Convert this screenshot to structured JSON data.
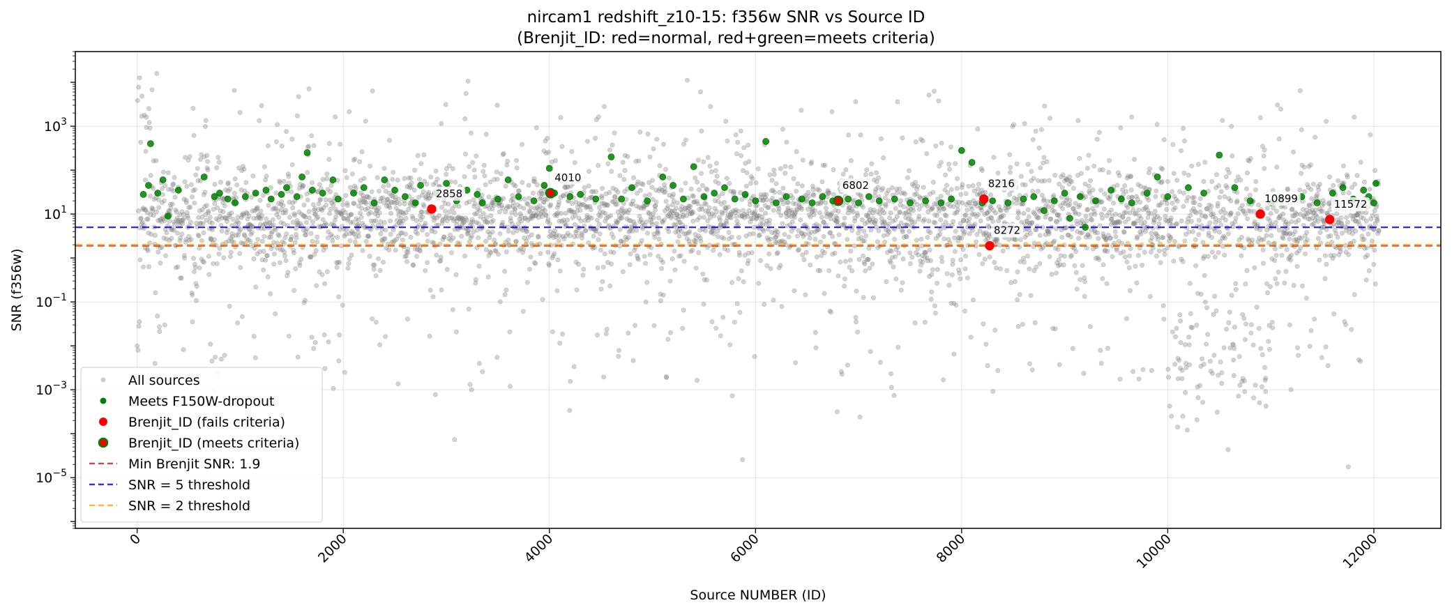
{
  "chart_data": {
    "type": "scatter",
    "title": "nircam1 redshift_z10-15: f356w SNR vs Source ID",
    "subtitle": "(Brenjit_ID: red=normal, red+green=meets criteria)",
    "xlabel": "Source NUMBER (ID)",
    "ylabel": "SNR (f356w)",
    "xlim": [
      -600,
      12650
    ],
    "ylim": [
      7e-07,
      50000
    ],
    "yscale": "log",
    "grid": true,
    "x_ticks": [
      0,
      2000,
      4000,
      6000,
      8000,
      10000,
      12000
    ],
    "x_tick_labels": [
      "0",
      "2000",
      "4000",
      "6000",
      "8000",
      "10000",
      "12000"
    ],
    "y_ticks": [
      {
        "value": 1000,
        "base": "10",
        "exp": "3"
      },
      {
        "value": 10,
        "base": "10",
        "exp": "1"
      },
      {
        "value": 0.1,
        "base": "10",
        "exp": "−1"
      },
      {
        "value": 0.001,
        "base": "10",
        "exp": "−3"
      },
      {
        "value": 1e-05,
        "base": "10",
        "exp": "−5"
      }
    ],
    "colors": {
      "all_sources": "#808080",
      "meets": "#008000",
      "brenjit": "#ff0000",
      "min_line": "#b22222",
      "snr5_line": "#0000cd",
      "snr2_line": "#ffa500"
    },
    "legend": {
      "placement": "lower-left",
      "entries": [
        {
          "label": "All sources",
          "kind": "all"
        },
        {
          "label": "Meets F150W-dropout",
          "kind": "meets"
        },
        {
          "label": "Brenjit_ID (fails criteria)",
          "kind": "fails"
        },
        {
          "label": "Brenjit_ID (meets criteria)",
          "kind": "brenjit_meets"
        },
        {
          "label": "Min Brenjit SNR: 1.9",
          "kind": "min_line"
        },
        {
          "label": "SNR = 5 threshold",
          "kind": "snr5_line"
        },
        {
          "label": "SNR = 2 threshold",
          "kind": "snr2_line"
        }
      ]
    },
    "hlines": [
      {
        "name": "Min Brenjit SNR: 1.9",
        "y": 1.9,
        "color": "#b22222"
      },
      {
        "name": "SNR = 5 threshold",
        "y": 5,
        "color": "#0000cd"
      },
      {
        "name": "SNR = 2 threshold",
        "y": 2,
        "color": "#ffa500"
      }
    ],
    "all_sources": {
      "n_points": 12050,
      "x_range": [
        0,
        12050
      ],
      "typical_snr_range": [
        1,
        100
      ],
      "note_cluster": "low-SNR cluster between ID 10000 and 11000 down to ~1e-5"
    },
    "meets_points": [
      {
        "x": 60,
        "y": 28
      },
      {
        "x": 110,
        "y": 45
      },
      {
        "x": 130,
        "y": 400
      },
      {
        "x": 200,
        "y": 30
      },
      {
        "x": 250,
        "y": 60
      },
      {
        "x": 300,
        "y": 9
      },
      {
        "x": 400,
        "y": 35
      },
      {
        "x": 650,
        "y": 70
      },
      {
        "x": 750,
        "y": 25
      },
      {
        "x": 800,
        "y": 30
      },
      {
        "x": 880,
        "y": 22
      },
      {
        "x": 950,
        "y": 18
      },
      {
        "x": 1050,
        "y": 25
      },
      {
        "x": 1150,
        "y": 30
      },
      {
        "x": 1250,
        "y": 35
      },
      {
        "x": 1300,
        "y": 22
      },
      {
        "x": 1400,
        "y": 28
      },
      {
        "x": 1450,
        "y": 40
      },
      {
        "x": 1550,
        "y": 25
      },
      {
        "x": 1600,
        "y": 70
      },
      {
        "x": 1650,
        "y": 250
      },
      {
        "x": 1700,
        "y": 35
      },
      {
        "x": 1800,
        "y": 30
      },
      {
        "x": 1900,
        "y": 60
      },
      {
        "x": 1950,
        "y": 22
      },
      {
        "x": 2100,
        "y": 30
      },
      {
        "x": 2200,
        "y": 40
      },
      {
        "x": 2300,
        "y": 18
      },
      {
        "x": 2400,
        "y": 60
      },
      {
        "x": 2500,
        "y": 35
      },
      {
        "x": 2600,
        "y": 25
      },
      {
        "x": 2700,
        "y": 18
      },
      {
        "x": 2750,
        "y": 45
      },
      {
        "x": 2900,
        "y": 30
      },
      {
        "x": 3000,
        "y": 50
      },
      {
        "x": 3100,
        "y": 20
      },
      {
        "x": 3200,
        "y": 35
      },
      {
        "x": 3300,
        "y": 28
      },
      {
        "x": 3350,
        "y": 18
      },
      {
        "x": 3500,
        "y": 22
      },
      {
        "x": 3600,
        "y": 60
      },
      {
        "x": 3700,
        "y": 25
      },
      {
        "x": 3850,
        "y": 20
      },
      {
        "x": 3950,
        "y": 45
      },
      {
        "x": 4000,
        "y": 110
      },
      {
        "x": 4050,
        "y": 30
      },
      {
        "x": 4200,
        "y": 25
      },
      {
        "x": 4300,
        "y": 28
      },
      {
        "x": 4450,
        "y": 22
      },
      {
        "x": 4600,
        "y": 200
      },
      {
        "x": 4700,
        "y": 22
      },
      {
        "x": 4800,
        "y": 40
      },
      {
        "x": 4950,
        "y": 20
      },
      {
        "x": 5100,
        "y": 70
      },
      {
        "x": 5200,
        "y": 45
      },
      {
        "x": 5300,
        "y": 22
      },
      {
        "x": 5400,
        "y": 120
      },
      {
        "x": 5500,
        "y": 25
      },
      {
        "x": 5600,
        "y": 30
      },
      {
        "x": 5700,
        "y": 40
      },
      {
        "x": 5800,
        "y": 22
      },
      {
        "x": 5900,
        "y": 28
      },
      {
        "x": 6000,
        "y": 20
      },
      {
        "x": 6100,
        "y": 450
      },
      {
        "x": 6200,
        "y": 18
      },
      {
        "x": 6300,
        "y": 25
      },
      {
        "x": 6450,
        "y": 22
      },
      {
        "x": 6550,
        "y": 18
      },
      {
        "x": 6650,
        "y": 25
      },
      {
        "x": 6750,
        "y": 20
      },
      {
        "x": 6900,
        "y": 22
      },
      {
        "x": 7000,
        "y": 18
      },
      {
        "x": 7100,
        "y": 25
      },
      {
        "x": 7200,
        "y": 20
      },
      {
        "x": 7350,
        "y": 22
      },
      {
        "x": 7500,
        "y": 18
      },
      {
        "x": 7650,
        "y": 20
      },
      {
        "x": 7800,
        "y": 18
      },
      {
        "x": 7900,
        "y": 22
      },
      {
        "x": 8000,
        "y": 280
      },
      {
        "x": 8100,
        "y": 150
      },
      {
        "x": 8200,
        "y": 18
      },
      {
        "x": 8300,
        "y": 20
      },
      {
        "x": 8450,
        "y": 18
      },
      {
        "x": 8600,
        "y": 22
      },
      {
        "x": 8700,
        "y": 25
      },
      {
        "x": 8800,
        "y": 12
      },
      {
        "x": 8900,
        "y": 20
      },
      {
        "x": 9000,
        "y": 30
      },
      {
        "x": 9050,
        "y": 8
      },
      {
        "x": 9150,
        "y": 25
      },
      {
        "x": 9200,
        "y": 5
      },
      {
        "x": 9300,
        "y": 20
      },
      {
        "x": 9450,
        "y": 35
      },
      {
        "x": 9550,
        "y": 22
      },
      {
        "x": 9650,
        "y": 18
      },
      {
        "x": 9800,
        "y": 30
      },
      {
        "x": 9900,
        "y": 70
      },
      {
        "x": 10000,
        "y": 25
      },
      {
        "x": 10200,
        "y": 40
      },
      {
        "x": 10350,
        "y": 30
      },
      {
        "x": 10500,
        "y": 220
      },
      {
        "x": 10650,
        "y": 40
      },
      {
        "x": 10800,
        "y": 20
      },
      {
        "x": 11000,
        "y": 18
      },
      {
        "x": 11100,
        "y": 22
      },
      {
        "x": 11300,
        "y": 25
      },
      {
        "x": 11450,
        "y": 18
      },
      {
        "x": 11600,
        "y": 30
      },
      {
        "x": 11700,
        "y": 40
      },
      {
        "x": 11800,
        "y": 22
      },
      {
        "x": 11900,
        "y": 35
      },
      {
        "x": 11950,
        "y": 25
      },
      {
        "x": 12000,
        "y": 18
      },
      {
        "x": 12020,
        "y": 50
      }
    ],
    "brenjit_points": [
      {
        "id": "2858",
        "x": 2858,
        "y": 13,
        "meets": false
      },
      {
        "id": "4010",
        "x": 4010,
        "y": 30,
        "meets": true
      },
      {
        "id": "6802",
        "x": 6802,
        "y": 20,
        "meets": true
      },
      {
        "id": "8216",
        "x": 8216,
        "y": 22,
        "meets": false
      },
      {
        "id": "8272",
        "x": 8272,
        "y": 1.9,
        "meets": false
      },
      {
        "id": "10899",
        "x": 10899,
        "y": 10,
        "meets": false
      },
      {
        "id": "11572",
        "x": 11572,
        "y": 7.5,
        "meets": false
      }
    ]
  }
}
